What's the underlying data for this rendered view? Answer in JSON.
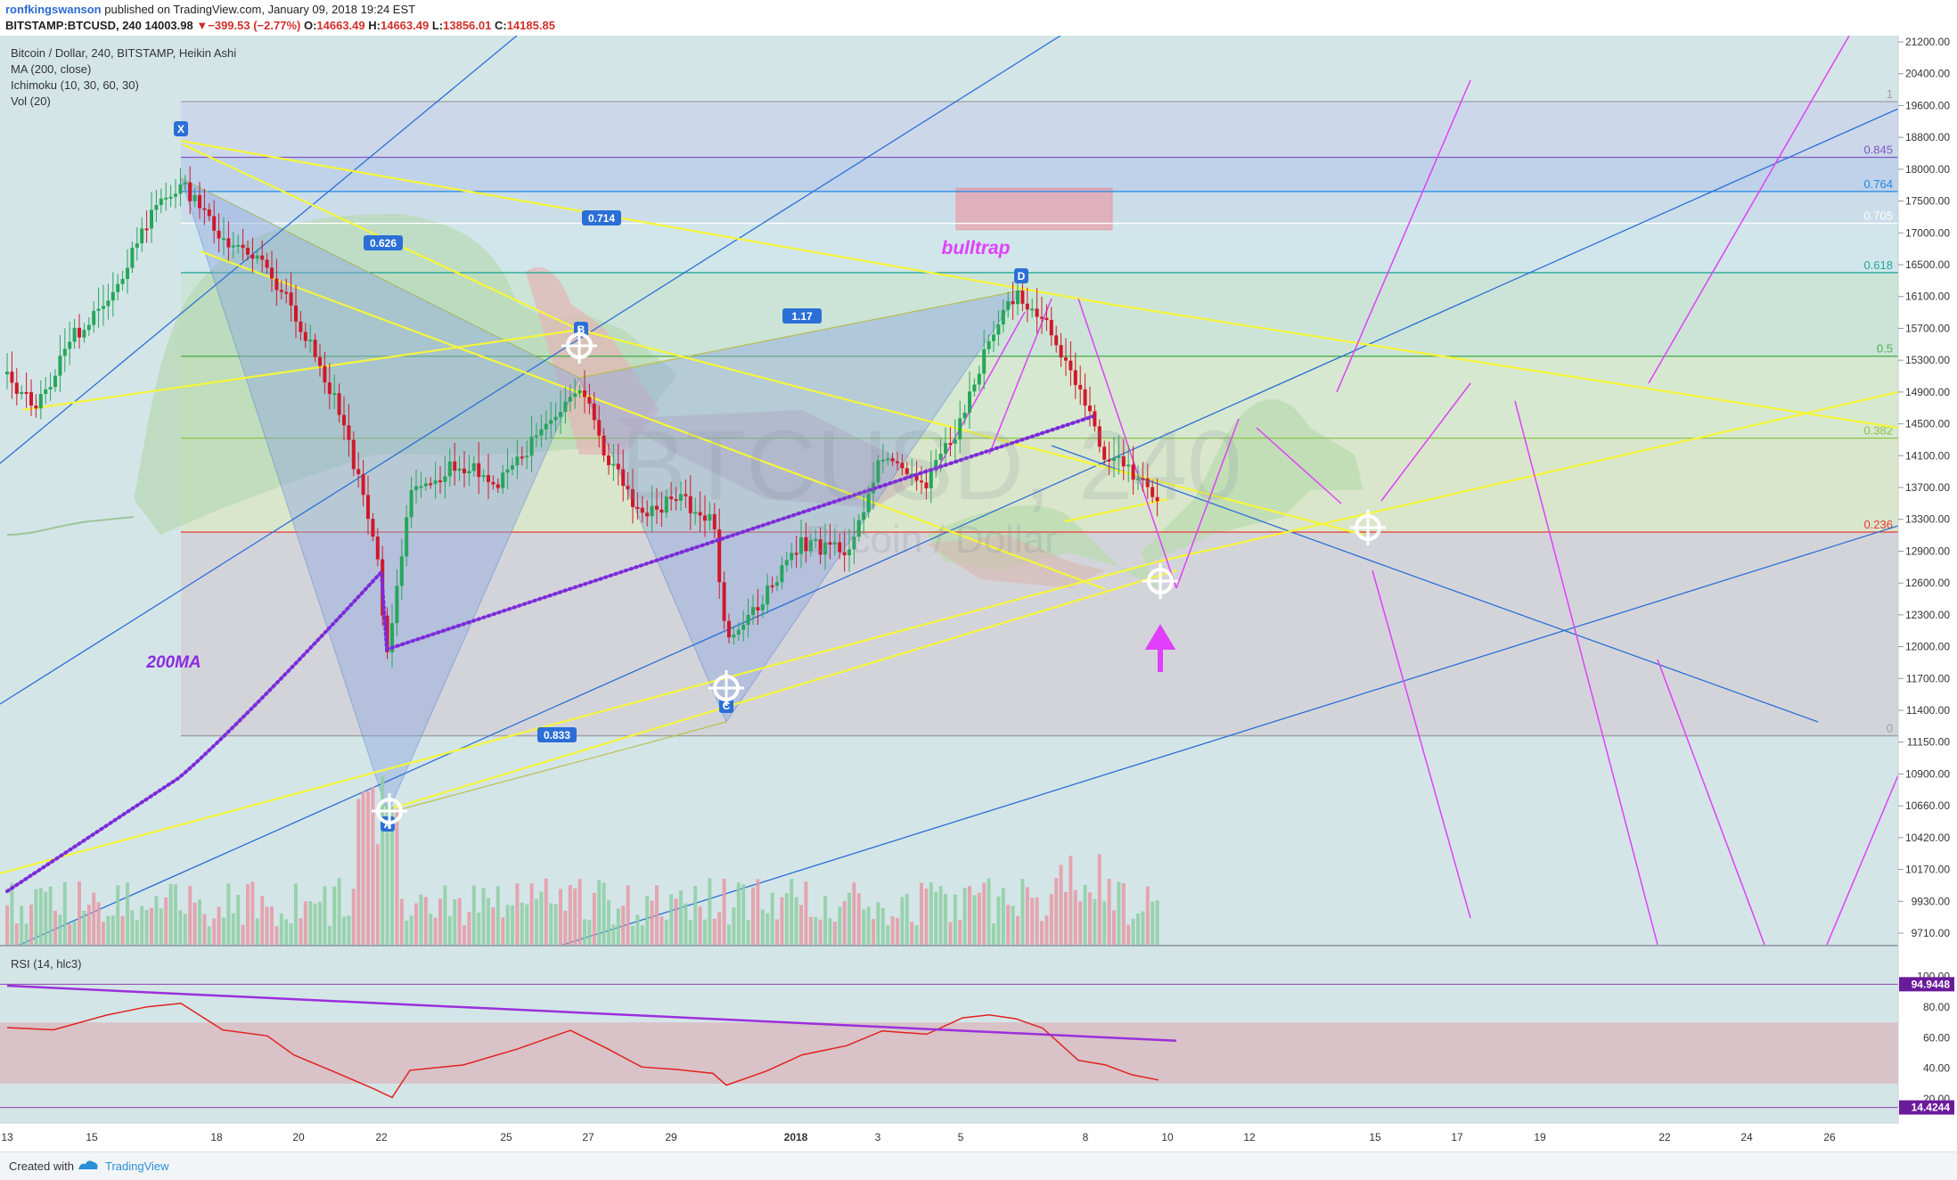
{
  "header": {
    "author": "ronfkingswanson",
    "published_text": "published on TradingView.com, January 09, 2018 19:24 EST",
    "symbol": "BITSTAMP:BTCUSD, 240",
    "last": "14003.98",
    "change": "−399.53 (−2.77%)",
    "open": "14663.49",
    "high": "14663.49",
    "low": "13856.01",
    "close": "14185.85"
  },
  "legend": {
    "title": "Bitcoin / Dollar, 240, BITSTAMP, Heikin Ashi",
    "ma": "MA (200, close)",
    "ichimoku": "Ichimoku (10, 30, 60, 30)",
    "vol": "Vol (20)"
  },
  "watermark": {
    "main": "BTCUSD, 240",
    "sub": "Bitcoin / Dollar"
  },
  "annotations": {
    "bulltrap": "bulltrap",
    "ma200": "200MA",
    "points": [
      "X",
      "A",
      "B",
      "C",
      "D"
    ],
    "ratios": [
      "0.626",
      "0.714",
      "1.17",
      "0.833"
    ]
  },
  "chart_data": {
    "type": "candlestick",
    "ylim": [
      9500,
      21500
    ],
    "price_axis_ticks": [
      9710,
      9930,
      10170,
      10420,
      10660,
      10900,
      11150,
      11400,
      11700,
      12000,
      12300,
      12600,
      12900,
      13300,
      13700,
      14100,
      14500,
      14900,
      15300,
      15700,
      16100,
      16500,
      17000,
      17500,
      18000,
      18800,
      19600,
      20400,
      21200
    ],
    "time_axis_labels": [
      "13",
      "15",
      "18",
      "20",
      "22",
      "25",
      "27",
      "29",
      "2018",
      "3",
      "5",
      "8",
      "10",
      "12",
      "15",
      "17",
      "19",
      "22",
      "24",
      "26"
    ],
    "fib_levels": [
      {
        "label": "1",
        "price": 19700,
        "color": "#9e9e9e"
      },
      {
        "label": "0.845",
        "price": 18300,
        "color": "#7e57c2"
      },
      {
        "label": "0.764",
        "price": 17650,
        "color": "#1e88e5"
      },
      {
        "label": "0.705",
        "price": 17150,
        "color": "#ffffff"
      },
      {
        "label": "0.618",
        "price": 16400,
        "color": "#26a69a"
      },
      {
        "label": "0.5",
        "price": 15350,
        "color": "#4caf50"
      },
      {
        "label": "0.382",
        "price": 14320,
        "color": "#8bc34a"
      },
      {
        "label": "0.236",
        "price": 13140,
        "color": "#e53935"
      },
      {
        "label": "0",
        "price": 11200,
        "color": "#9e9e9e"
      }
    ],
    "harmonic_points": [
      {
        "label": "X",
        "price": 19700
      },
      {
        "label": "A",
        "price": 11200
      },
      {
        "label": "B",
        "price": 16500
      },
      {
        "label": "C",
        "price": 12100
      },
      {
        "label": "D",
        "price": 17200
      }
    ],
    "rsi": {
      "label": "RSI (14, hlc3)",
      "ylim": [
        0,
        100
      ],
      "ticks": [
        20,
        40,
        60,
        80,
        100
      ],
      "upper_badge": "94.9448",
      "lower_badge": "14.4244",
      "band": [
        30,
        70
      ]
    },
    "colors": {
      "up": "#26a65b",
      "down": "#d0182a",
      "rsi": "#e0221f",
      "ma": "#7b2bd9",
      "trend": "#f5f53a",
      "channel": "#2b6fd6",
      "projection": "#e040fb"
    }
  },
  "footer": {
    "created_with": "Created with",
    "brand": "TradingView"
  }
}
